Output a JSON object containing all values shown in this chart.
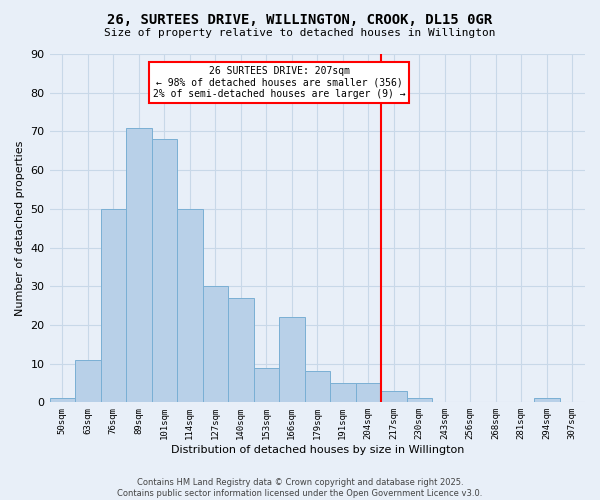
{
  "title": "26, SURTEES DRIVE, WILLINGTON, CROOK, DL15 0GR",
  "subtitle": "Size of property relative to detached houses in Willington",
  "xlabel": "Distribution of detached houses by size in Willington",
  "ylabel": "Number of detached properties",
  "bin_labels": [
    "50sqm",
    "63sqm",
    "76sqm",
    "89sqm",
    "101sqm",
    "114sqm",
    "127sqm",
    "140sqm",
    "153sqm",
    "166sqm",
    "179sqm",
    "191sqm",
    "204sqm",
    "217sqm",
    "230sqm",
    "243sqm",
    "256sqm",
    "268sqm",
    "281sqm",
    "294sqm",
    "307sqm"
  ],
  "bar_values": [
    1,
    11,
    50,
    71,
    68,
    50,
    30,
    27,
    9,
    22,
    8,
    5,
    5,
    3,
    1,
    0,
    0,
    0,
    0,
    1,
    0
  ],
  "bar_color": "#b8d0e8",
  "bar_edge_color": "#7aafd4",
  "vline_x_index": 12.5,
  "vline_color": "red",
  "annotation_text": "26 SURTEES DRIVE: 207sqm\n← 98% of detached houses are smaller (356)\n2% of semi-detached houses are larger (9) →",
  "annotation_box_edge": "red",
  "ylim": [
    0,
    90
  ],
  "yticks": [
    0,
    10,
    20,
    30,
    40,
    50,
    60,
    70,
    80,
    90
  ],
  "grid_color": "#c8d8e8",
  "bg_color": "#e8eff8",
  "footer_line1": "Contains HM Land Registry data © Crown copyright and database right 2025.",
  "footer_line2": "Contains public sector information licensed under the Open Government Licence v3.0."
}
